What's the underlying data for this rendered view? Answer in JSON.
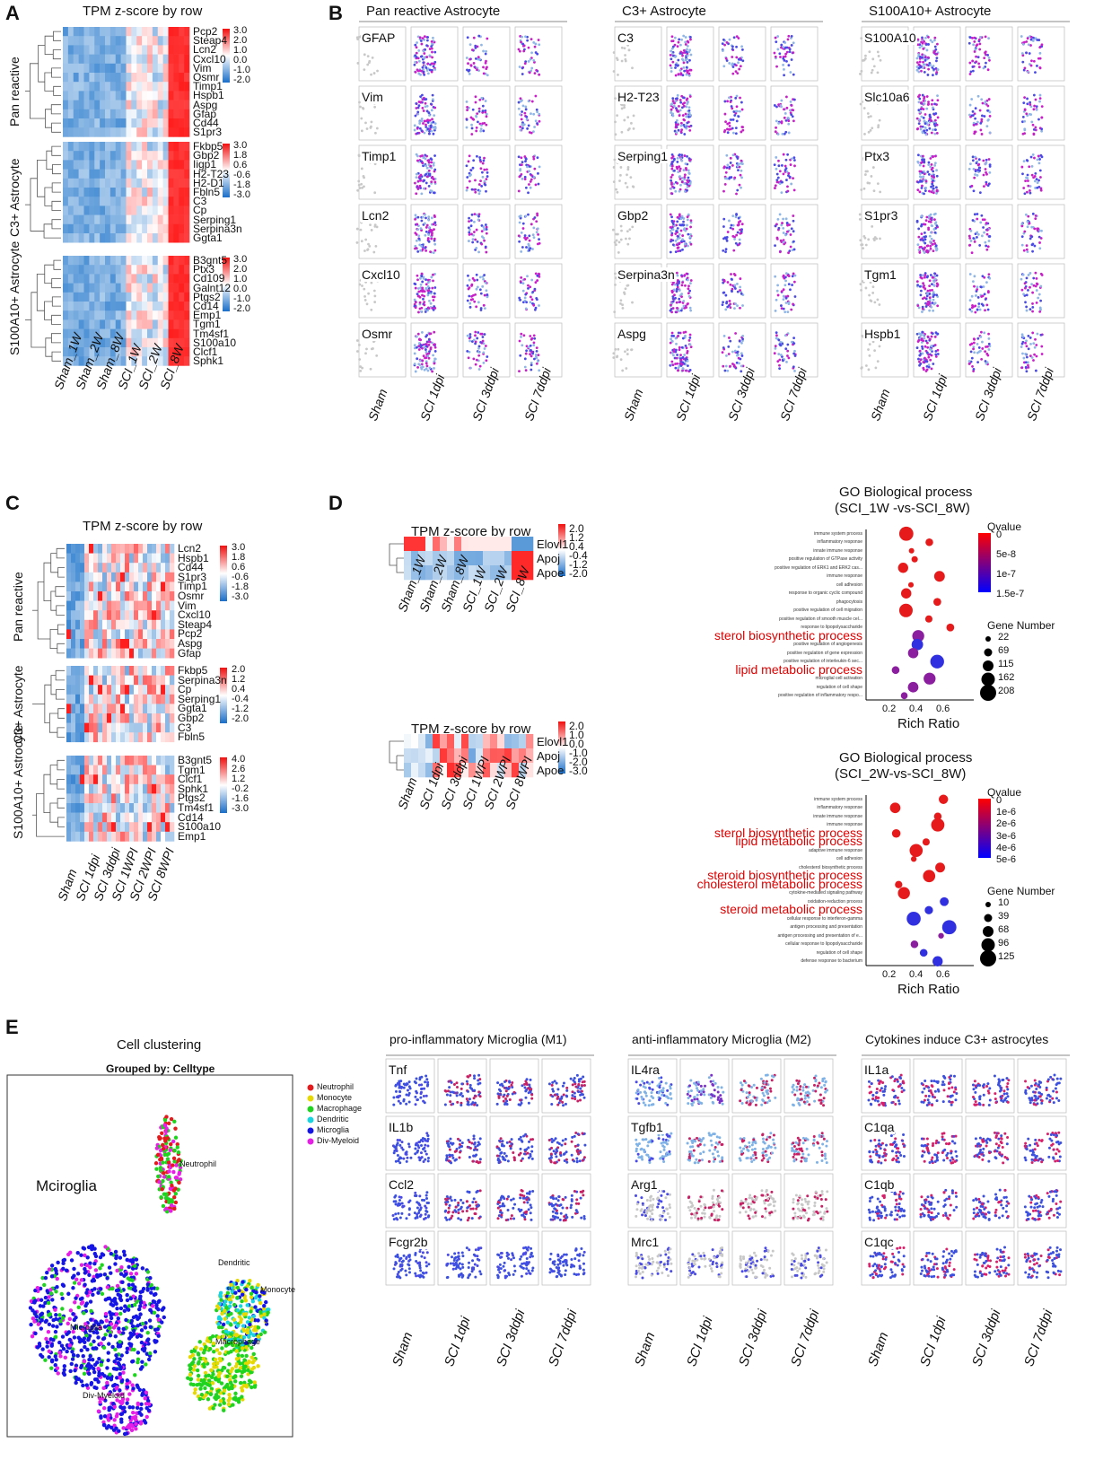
{
  "panels": {
    "A": {
      "label": "A",
      "title": "TPM z-score by row",
      "groups": [
        {
          "name": "Pan reactive",
          "genes": [
            "Pcp2",
            "Steap4",
            "Lcn2",
            "Cxcl10",
            "Vim",
            "Osmr",
            "Timp1",
            "Hspb1",
            "Aspg",
            "Gfap",
            "Cd44",
            "S1pr3"
          ],
          "scale": [
            "3.0",
            "2.0",
            "1.0",
            "0.0",
            "-1.0",
            "-2.0"
          ]
        },
        {
          "name": "C3+ Astrocyte",
          "genes": [
            "Fkbp5",
            "Gbp2",
            "Iigp1",
            "H2-T23",
            "H2-D1",
            "Fbln5",
            "C3",
            "Cp",
            "Serping1",
            "Serpina3n",
            "Ggta1"
          ],
          "scale": [
            "3.0",
            "1.8",
            "0.6",
            "-0.6",
            "-1.8",
            "-3.0"
          ]
        },
        {
          "name": "S100A10+ Astrocyte",
          "genes": [
            "B3gnt5",
            "Ptx3",
            "Cd109",
            "Galnt12",
            "Ptgs2",
            "Cd14",
            "Emp1",
            "Tgm1",
            "Tm4sf1",
            "S100a10",
            "Clcf1",
            "Sphk1"
          ],
          "scale": [
            "3.0",
            "2.0",
            "1.0",
            "0.0",
            "-1.0",
            "-2.0"
          ]
        }
      ],
      "columns": [
        "Sham_1W",
        "Sham_2W",
        "Sham_8W",
        "SCI_1W",
        "SCI_2W",
        "SCI_8W"
      ]
    },
    "B": {
      "label": "B",
      "groups": [
        {
          "title": "Pan reactive Astrocyte",
          "genes": [
            "GFAP",
            "Vim",
            "Timp1",
            "Lcn2",
            "Cxcl10",
            "Osmr"
          ]
        },
        {
          "title": "C3+ Astrocyte",
          "genes": [
            "C3",
            "H2-T23",
            "Serping1",
            "Gbp2",
            "Serpina3n",
            "Aspg"
          ]
        },
        {
          "title": "S100A10+ Astrocyte",
          "genes": [
            "S100A10",
            "Slc10a6",
            "Ptx3",
            "S1pr3",
            "Tgm1",
            "Hspb1"
          ]
        }
      ],
      "columns": [
        "Sham",
        "SCI 1dpi",
        "SCI 3ddpi",
        "SCI 7ddpi"
      ]
    },
    "C": {
      "label": "C",
      "title": "TPM z-score by row",
      "groups": [
        {
          "name": "Pan reactive",
          "genes": [
            "Lcn2",
            "Hspb1",
            "Cd44",
            "S1pr3",
            "Timp1",
            "Osmr",
            "Vim",
            "Cxcl10",
            "Steap4",
            "Pcp2",
            "Aspg",
            "Gfap"
          ],
          "scale": [
            "3.0",
            "1.8",
            "0.6",
            "-0.6",
            "-1.8",
            "-3.0"
          ]
        },
        {
          "name": "C3+ Astrocyte",
          "genes": [
            "Fkbp5",
            "Serpina3n",
            "Cp",
            "Serping1",
            "Ggta1",
            "Gbp2",
            "C3",
            "Fbln5"
          ],
          "scale": [
            "2.0",
            "1.2",
            "0.4",
            "-0.4",
            "-1.2",
            "-2.0"
          ]
        },
        {
          "name": "S100A10+ Astrocyte",
          "genes": [
            "B3gnt5",
            "Tgm1",
            "Clcf1",
            "Sphk1",
            "Ptgs2",
            "Tm4sf1",
            "Cd14",
            "S100a10",
            "Emp1"
          ],
          "scale": [
            "4.0",
            "2.6",
            "1.2",
            "-0.2",
            "-1.6",
            "-3.0"
          ]
        }
      ],
      "columns": [
        "Sham",
        "SCI 1dpi",
        "SCI 3ddpi",
        "SCI 1WPI",
        "SCI 2WPI",
        "SCI 8WPI"
      ]
    },
    "D": {
      "label": "D",
      "heatmap1": {
        "title": "TPM z-score by row",
        "genes": [
          "Elovl1",
          "Apoj",
          "Apoe"
        ],
        "scale": [
          "2.0",
          "1.2",
          "0.4",
          "-0.4",
          "-1.2",
          "-2.0"
        ],
        "columns": [
          "Sham_1W",
          "Sham_2W",
          "Sham_8W",
          "SCI_1W",
          "SCI_2W",
          "SCI_8W"
        ]
      },
      "heatmap2": {
        "title": "TPM z-score by row",
        "genes": [
          "Elovl1",
          "Apoj",
          "Apoe"
        ],
        "scale": [
          "2.0",
          "1.0",
          "0.0",
          "-1.0",
          "-2.0",
          "-3.0"
        ],
        "columns": [
          "Sham",
          "SCI 1dpi",
          "SCI 3ddpi",
          "SCI 1WPI",
          "SCI 2WPI",
          "SCI 8WPI"
        ]
      },
      "go1": {
        "title1": "GO Biological process",
        "title2": "(SCI_1W -vs-SCI_8W)",
        "terms": [
          "immune system process",
          "inflammatory response",
          "innate immune response",
          "positive regulation of GTPase activity",
          "positive regulation of ERK1 and ERK2 cas...",
          "immune response",
          "cell adhesion",
          "response to organic cyclic compound",
          "phagocytosis",
          "positive regulation of cell migration",
          "positive regulation of smooth muscle cel...",
          "response to lipopolysaccharide",
          "sterol biosynthetic process",
          "positive regulation of angiogenesis",
          "positive regulation of gene expression",
          "positive regulation of interleukin-6 sec...",
          "lipid metabolic process",
          "microglial cell activation",
          "regulation of cell shape",
          "positive regulation of inflammatory respo..."
        ],
        "highlight": [
          "sterol biosynthetic process",
          "lipid metabolic process"
        ],
        "qvalue_label": "Qvalue",
        "qvalue_ticks": [
          "0",
          "5e-8",
          "1e-7",
          "1.5e-7"
        ],
        "gene_number_label": "Gene Number",
        "gene_number_ticks": [
          "22",
          "69",
          "115",
          "162",
          "208"
        ],
        "xlabel": "Rich Ratio",
        "xticks": [
          "0.2",
          "0.4",
          "0.6"
        ]
      },
      "go2": {
        "title1": "GO Biological process",
        "title2": "(SCI_2W-vs-SCI_8W)",
        "terms": [
          "immune system process",
          "inflammatory response",
          "innate immune response",
          "immune response",
          "sterol biosynthetic process",
          "lipid metabolic process",
          "adaptive immune response",
          "cell adhesion",
          "cholesterol biosynthetic process",
          "steroid biosynthetic process",
          "cholesterol metabolic process",
          "cytokine-mediated signaling pathway",
          "oxidation-reduction process",
          "steroid metabolic process",
          "cellular response to interferon-gamma",
          "antigen processing and presentation",
          "antigen processing and presentation of e...",
          "cellular response to lipopolysaccharide",
          "regulation of cell shape",
          "defense response to bacterium"
        ],
        "highlight": [
          "sterol biosynthetic process",
          "lipid metabolic process",
          "steroid biosynthetic process",
          "cholesterol metabolic process",
          "steroid metabolic process"
        ],
        "qvalue_label": "Qvalue",
        "qvalue_ticks": [
          "0",
          "1e-6",
          "2e-6",
          "3e-6",
          "4e-6",
          "5e-6"
        ],
        "gene_number_label": "Gene Number",
        "gene_number_ticks": [
          "10",
          "39",
          "68",
          "96",
          "125"
        ],
        "xlabel": "Rich Ratio",
        "xticks": [
          "0.2",
          "0.4",
          "0.6"
        ]
      }
    },
    "E": {
      "label": "E",
      "cluster_title": "Cell clustering",
      "cluster_subtitle": "Grouped by: Celltype",
      "legend": [
        {
          "name": "Neutrophil",
          "color": "#e41a1c"
        },
        {
          "name": "Monocyte",
          "color": "#e6d800"
        },
        {
          "name": "Macrophage",
          "color": "#1fd41f"
        },
        {
          "name": "Dendritic",
          "color": "#17d4e0"
        },
        {
          "name": "Microglia",
          "color": "#1515e6"
        },
        {
          "name": "Div-Myeloid",
          "color": "#e61ee6"
        }
      ],
      "cluster_labels": [
        "Neutrophil",
        "Mciroglia",
        "Dendritic",
        "Monocyte",
        "Macrophage",
        "Microglia",
        "Div-Myeloid"
      ],
      "groups": [
        {
          "title": "pro-inflammatory Microglia (M1)",
          "genes": [
            "Tnf",
            "IL1b",
            "Ccl2",
            "Fcgr2b"
          ]
        },
        {
          "title": "anti-inflammatory Microglia (M2)",
          "genes": [
            "IL4ra",
            "Tgfb1",
            "Arg1",
            "Mrc1"
          ]
        },
        {
          "title": "Cytokines induce C3+ astrocytes",
          "genes": [
            "IL1a",
            "C1qa",
            "C1qb",
            "C1qc"
          ]
        }
      ],
      "columns": [
        "Sham",
        "SCI 1dpi",
        "SCI 3ddpi",
        "SCI 7ddpi"
      ]
    }
  }
}
